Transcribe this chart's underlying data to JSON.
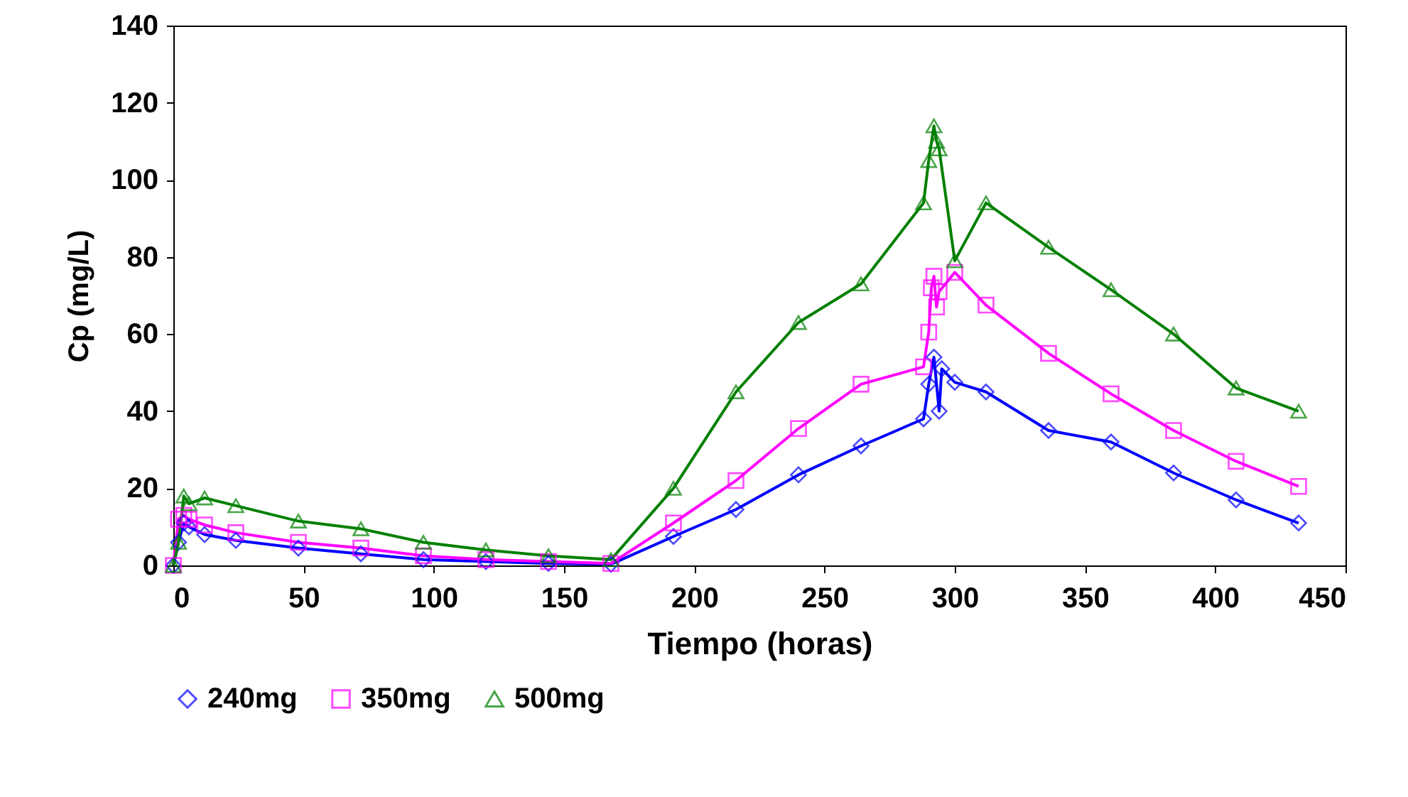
{
  "chart_data": {
    "type": "line",
    "xlabel": "Tiempo (horas)",
    "ylabel": "Cp (mg/L)",
    "xlim": [
      0,
      450
    ],
    "ylim": [
      0,
      140
    ],
    "xticks": [
      0,
      50,
      100,
      150,
      200,
      250,
      300,
      350,
      400,
      450
    ],
    "yticks": [
      0,
      20,
      40,
      60,
      80,
      100,
      120,
      140
    ],
    "grid": false,
    "legend": "bottom",
    "line_style": "solid",
    "series": [
      {
        "name": "240mg",
        "color": "#0000ff",
        "marker": "diamond",
        "x": [
          0,
          2,
          4,
          6,
          12,
          24,
          48,
          72,
          96,
          120,
          144,
          168,
          192,
          216,
          240,
          264,
          288,
          290,
          292,
          294,
          295,
          300,
          312,
          336,
          360,
          384,
          408,
          432
        ],
        "values": [
          0,
          6,
          11,
          10,
          8,
          6.5,
          4.5,
          3,
          1.5,
          1,
          0.5,
          0.3,
          7.5,
          14.5,
          23.5,
          31,
          38,
          47,
          54,
          40,
          51,
          47.5,
          45,
          35,
          32,
          24,
          17,
          11
        ]
      },
      {
        "name": "350mg",
        "color": "#ff00ff",
        "marker": "square",
        "x": [
          0,
          2,
          4,
          6,
          12,
          24,
          48,
          72,
          96,
          120,
          144,
          168,
          192,
          216,
          240,
          264,
          288,
          290,
          291,
          292,
          293,
          294,
          300,
          312,
          336,
          360,
          384,
          408,
          432
        ],
        "values": [
          0,
          12,
          13,
          12,
          10.5,
          8.5,
          6,
          4.5,
          2.5,
          1.5,
          1,
          0.5,
          11,
          22,
          35.5,
          47,
          51.5,
          60.5,
          72,
          75,
          67,
          71,
          76,
          67.5,
          55,
          44.5,
          35,
          27,
          20.5
        ]
      },
      {
        "name": "500mg",
        "color": "#008000",
        "marker": "triangle",
        "x": [
          0,
          2,
          4,
          6,
          12,
          24,
          48,
          72,
          96,
          120,
          144,
          168,
          192,
          216,
          240,
          264,
          288,
          290,
          292,
          293,
          294,
          300,
          312,
          336,
          360,
          384,
          408,
          432
        ],
        "values": [
          0,
          6,
          18,
          16,
          17.5,
          15.5,
          11.5,
          9.5,
          6,
          4,
          2.5,
          1.5,
          20,
          45,
          63,
          73,
          94,
          105,
          114,
          110,
          108,
          79,
          94,
          82.5,
          71.5,
          60,
          46,
          40
        ]
      }
    ]
  }
}
